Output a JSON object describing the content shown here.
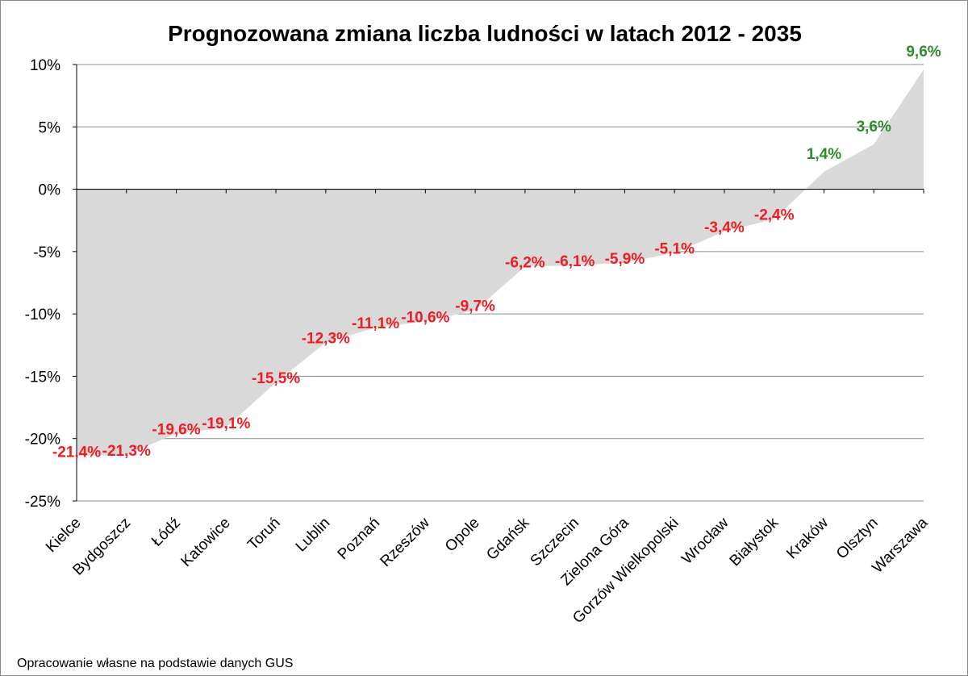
{
  "chart_data": {
    "type": "area",
    "title": "Prognozowana zmiana liczba ludności w latach 2012 - 2035",
    "xlabel": "",
    "ylabel": "",
    "ylim": [
      -25,
      10
    ],
    "ytick_step": 5,
    "ytick_labels": [
      "10%",
      "5%",
      "0%",
      "-5%",
      "-10%",
      "-15%",
      "-20%",
      "-25%"
    ],
    "grid": true,
    "legend": "none",
    "categories": [
      "Kielce",
      "Bydgoszcz",
      "Łódź",
      "Katowice",
      "Toruń",
      "Lublin",
      "Poznań",
      "Rzeszów",
      "Opole",
      "Gdańsk",
      "Szczecin",
      "Zielona Góra",
      "Gorzów Wielkopolski",
      "Wrocław",
      "Białystok",
      "Kraków",
      "Olsztyn",
      "Warszawa"
    ],
    "values": [
      -21.4,
      -21.3,
      -19.6,
      -19.1,
      -15.5,
      -12.3,
      -11.1,
      -10.6,
      -9.7,
      -6.2,
      -6.1,
      -5.9,
      -5.1,
      -3.4,
      -2.4,
      1.4,
      3.6,
      9.6
    ],
    "data_labels": [
      "-21,4%",
      "-21,3%",
      "-19,6%",
      "-19,1%",
      "-15,5%",
      "-12,3%",
      "-11,1%",
      "-10,6%",
      "-9,7%",
      "-6,2%",
      "-6,1%",
      "-5,9%",
      "-5,1%",
      "-3,4%",
      "-2,4%",
      "1,4%",
      "3,6%",
      "9,6%"
    ],
    "source_note": "Opracowanie własne na podstawie danych GUS",
    "colors": {
      "area_fill": "#d9d9d9",
      "negative_label": "#ee1c24",
      "positive_label": "#2e8b2e",
      "gridline": "#8c8c8c",
      "axis": "#000000"
    }
  }
}
